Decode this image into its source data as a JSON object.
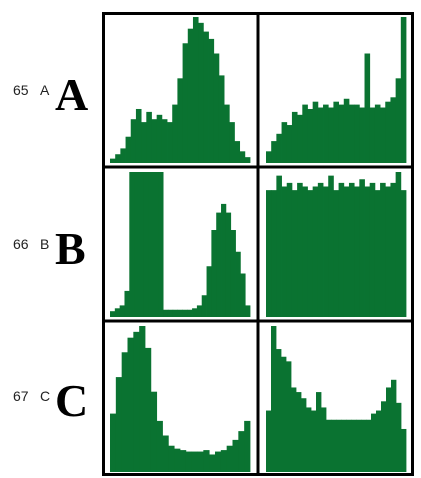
{
  "rows": [
    {
      "number": "65",
      "small": "A",
      "big": "A"
    },
    {
      "number": "66",
      "small": "B",
      "big": "B"
    },
    {
      "number": "67",
      "small": "C",
      "big": "C"
    }
  ],
  "colors": {
    "bar": "#0a7331",
    "frame": "#000000"
  },
  "chart_data": [
    {
      "type": "bar",
      "row": "A",
      "panel": "left",
      "values": [
        3,
        6,
        10,
        18,
        30,
        37,
        28,
        35,
        30,
        33,
        30,
        28,
        40,
        58,
        82,
        92,
        100,
        96,
        90,
        85,
        75,
        60,
        40,
        28,
        15,
        8,
        4
      ]
    },
    {
      "type": "bar",
      "row": "A",
      "panel": "right",
      "values": [
        8,
        15,
        20,
        28,
        26,
        35,
        33,
        40,
        37,
        42,
        38,
        40,
        38,
        42,
        40,
        44,
        40,
        40,
        38,
        75,
        38,
        40,
        38,
        42,
        45,
        58,
        100
      ]
    },
    {
      "type": "bar",
      "row": "B",
      "panel": "left",
      "values": [
        4,
        6,
        8,
        18,
        100,
        100,
        100,
        100,
        100,
        100,
        100,
        5,
        5,
        5,
        5,
        5,
        5,
        6,
        8,
        15,
        35,
        60,
        72,
        78,
        72,
        60,
        45,
        30,
        8
      ]
    },
    {
      "type": "bar",
      "row": "B",
      "panel": "right",
      "values": [
        70,
        70,
        78,
        72,
        74,
        70,
        74,
        72,
        70,
        72,
        74,
        72,
        78,
        70,
        74,
        72,
        74,
        72,
        76,
        72,
        74,
        70,
        74,
        72,
        74,
        80,
        70
      ]
    },
    {
      "type": "bar",
      "row": "C",
      "panel": "left",
      "values": [
        40,
        65,
        82,
        92,
        96,
        100,
        85,
        55,
        35,
        25,
        18,
        16,
        15,
        14,
        14,
        14,
        15,
        12,
        14,
        15,
        18,
        22,
        28,
        35
      ]
    },
    {
      "type": "bar",
      "row": "C",
      "panel": "right",
      "values": [
        40,
        95,
        80,
        75,
        72,
        55,
        52,
        48,
        42,
        40,
        52,
        42,
        34,
        34,
        34,
        34,
        34,
        34,
        34,
        34,
        34,
        38,
        40,
        46,
        55,
        60,
        45,
        28
      ]
    }
  ]
}
